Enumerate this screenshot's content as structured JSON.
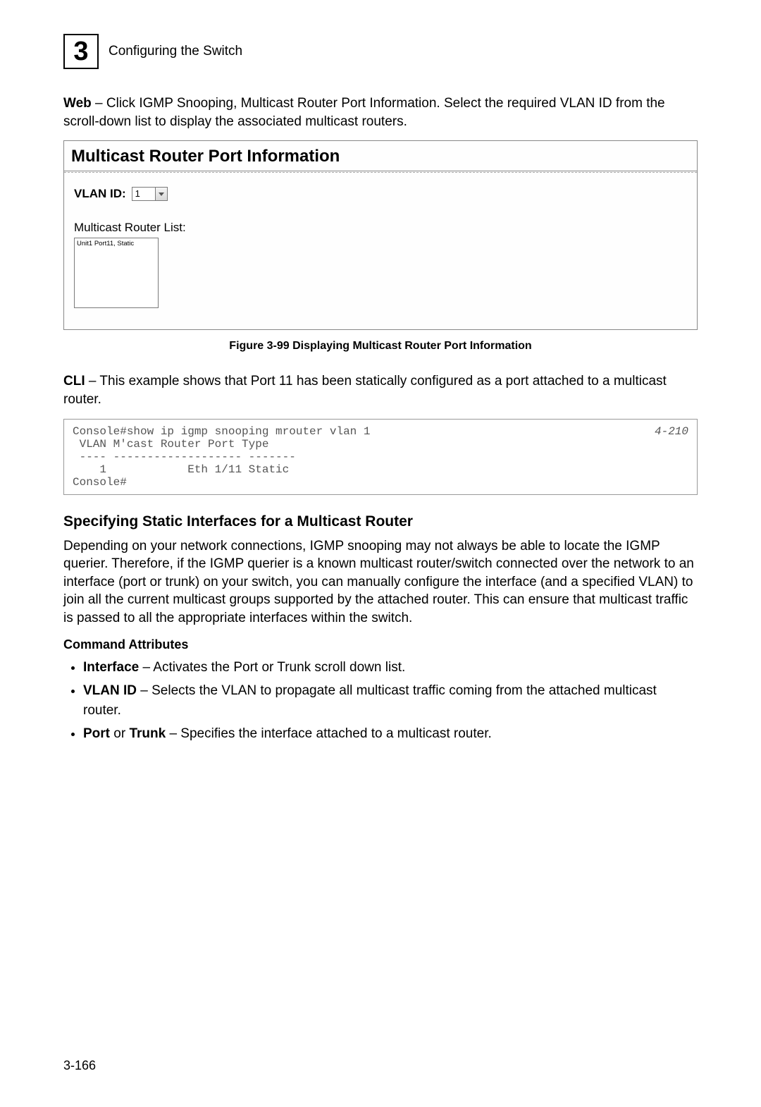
{
  "header": {
    "chapter_number": "3",
    "title": "Configuring the Switch"
  },
  "intro_web": {
    "label": "Web",
    "text": " – Click IGMP Snooping, Multicast Router Port Information. Select the required VLAN ID from the scroll-down list to display the associated multicast routers."
  },
  "panel": {
    "title": "Multicast Router Port Information",
    "vlan_label": "VLAN ID:",
    "vlan_value": "1",
    "list_label": "Multicast Router List:",
    "list_item": "Unit1 Port11, Static"
  },
  "figure_caption": "Figure 3-99  Displaying Multicast Router Port Information",
  "intro_cli": {
    "label": "CLI",
    "text": " – This example shows that Port 11 has been statically configured as a port attached to a multicast router."
  },
  "cli": {
    "ref": "4-210",
    "lines": "Console#show ip igmp snooping mrouter vlan 1\n VLAN M'cast Router Port Type\n ---- ------------------- -------\n    1            Eth 1/11 Static\nConsole#"
  },
  "section": {
    "title": "Specifying Static Interfaces for a Multicast Router",
    "para": "Depending on your network connections, IGMP snooping may not always be able to locate the IGMP querier. Therefore, if the IGMP querier is a known multicast router/switch connected over the network to an interface (port or trunk) on your switch, you can manually configure the interface (and a specified VLAN) to join all the current multicast groups supported by the attached router. This can ensure that multicast traffic is passed to all the appropriate interfaces within the switch.",
    "attrs_title": "Command Attributes",
    "attrs": [
      {
        "label": "Interface",
        "text": " – Activates the Port or Trunk scroll down list."
      },
      {
        "label": "VLAN ID",
        "text": " – Selects the VLAN to propagate all multicast traffic coming from the attached multicast router."
      },
      {
        "label_combo": "Port or Trunk",
        "label1": "Port",
        "mid": " or ",
        "label2": "Trunk",
        "text": " – Specifies the interface attached to a multicast router."
      }
    ]
  },
  "page_number": "3-166"
}
